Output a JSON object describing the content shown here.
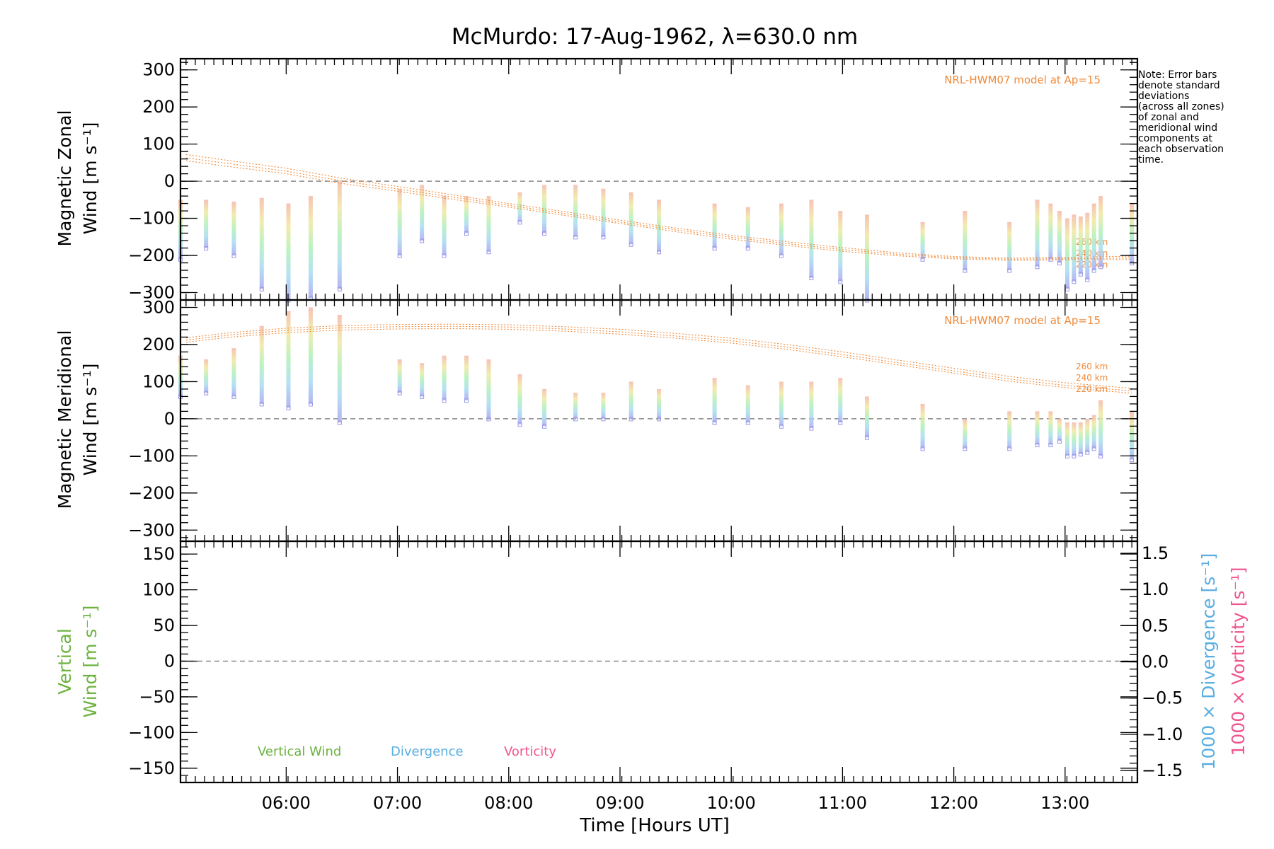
{
  "title": "McMurdo: 17-Aug-1962, λ=630.0 nm",
  "note": [
    "Note: Error bars",
    "denote standard",
    "deviations",
    "(across all zones)",
    "of zonal and",
    "meridional wind",
    "components at",
    "each observation",
    "time."
  ],
  "colors": {
    "model": "#f08a3a",
    "vertical": "#6cb33f",
    "divergence": "#5aaee0",
    "vorticity": "#f0558e",
    "zero_line": "#888888",
    "zone_gradient": [
      "#a8a8f0",
      "#a8dcf0",
      "#b0f0b8",
      "#f0e8a0",
      "#f5b8a8"
    ]
  },
  "chart_data": [
    {
      "id": "zonal",
      "type": "scatter",
      "ylabel": [
        "Magnetic Zonal",
        "Wind [m s⁻¹]"
      ],
      "ylim": [
        -320,
        330
      ],
      "yticks": [
        300,
        200,
        100,
        0,
        -100,
        -200,
        -300
      ],
      "model_label": "NRL-HWM07 model at Ap=15",
      "model_alts": [
        "260 km",
        "240 km",
        "220 km"
      ],
      "model_curves": [
        {
          "alt": "260 km",
          "t": [
            5.1,
            5.5,
            6.0,
            6.5,
            7.0,
            7.5,
            8.0,
            8.5,
            9.0,
            9.5,
            10.0,
            10.5,
            11.0,
            11.5,
            12.0,
            12.5,
            13.0,
            13.6
          ],
          "v": [
            72,
            55,
            35,
            8,
            -14,
            -37,
            -60,
            -82,
            -105,
            -126,
            -146,
            -163,
            -179,
            -193,
            -203,
            -207,
            -205,
            -202
          ]
        },
        {
          "alt": "240 km",
          "t": [
            5.1,
            5.5,
            6.0,
            6.5,
            7.0,
            7.5,
            8.0,
            8.5,
            9.0,
            9.5,
            10.0,
            10.5,
            11.0,
            11.5,
            12.0,
            12.5,
            13.0,
            13.6
          ],
          "v": [
            63,
            47,
            27,
            1,
            -21,
            -43,
            -65,
            -87,
            -110,
            -131,
            -151,
            -168,
            -184,
            -197,
            -206,
            -210,
            -209,
            -207
          ]
        },
        {
          "alt": "220 km",
          "t": [
            5.1,
            5.5,
            6.0,
            6.5,
            7.0,
            7.5,
            8.0,
            8.5,
            9.0,
            9.5,
            10.0,
            10.5,
            11.0,
            11.5,
            12.0,
            12.5,
            13.0,
            13.6
          ],
          "v": [
            55,
            39,
            20,
            -6,
            -27,
            -49,
            -70,
            -92,
            -114,
            -136,
            -156,
            -173,
            -189,
            -201,
            -209,
            -213,
            -212,
            -211
          ]
        }
      ],
      "observations": [
        {
          "t": 5.05,
          "lo": -210,
          "hi": -50
        },
        {
          "t": 5.28,
          "lo": -180,
          "hi": -50
        },
        {
          "t": 5.53,
          "lo": -200,
          "hi": -55
        },
        {
          "t": 5.78,
          "lo": -290,
          "hi": -45
        },
        {
          "t": 6.02,
          "lo": -320,
          "hi": -60
        },
        {
          "t": 6.22,
          "lo": -315,
          "hi": -40
        },
        {
          "t": 6.48,
          "lo": -290,
          "hi": 0
        },
        {
          "t": 7.02,
          "lo": -200,
          "hi": -20
        },
        {
          "t": 7.22,
          "lo": -160,
          "hi": -10
        },
        {
          "t": 7.42,
          "lo": -200,
          "hi": -40
        },
        {
          "t": 7.62,
          "lo": -140,
          "hi": -40
        },
        {
          "t": 7.82,
          "lo": -190,
          "hi": -40
        },
        {
          "t": 8.1,
          "lo": -110,
          "hi": -30
        },
        {
          "t": 8.32,
          "lo": -140,
          "hi": -10
        },
        {
          "t": 8.6,
          "lo": -150,
          "hi": -10
        },
        {
          "t": 8.85,
          "lo": -150,
          "hi": -20
        },
        {
          "t": 9.1,
          "lo": -170,
          "hi": -30
        },
        {
          "t": 9.35,
          "lo": -190,
          "hi": -50
        },
        {
          "t": 9.85,
          "lo": -180,
          "hi": -60
        },
        {
          "t": 10.15,
          "lo": -180,
          "hi": -70
        },
        {
          "t": 10.45,
          "lo": -200,
          "hi": -60
        },
        {
          "t": 10.72,
          "lo": -260,
          "hi": -50
        },
        {
          "t": 10.98,
          "lo": -270,
          "hi": -80
        },
        {
          "t": 11.22,
          "lo": -320,
          "hi": -90
        },
        {
          "t": 11.72,
          "lo": -210,
          "hi": -110
        },
        {
          "t": 12.1,
          "lo": -240,
          "hi": -80
        },
        {
          "t": 12.5,
          "lo": -240,
          "hi": -110
        },
        {
          "t": 12.75,
          "lo": -230,
          "hi": -50
        },
        {
          "t": 12.87,
          "lo": -210,
          "hi": -60
        },
        {
          "t": 12.95,
          "lo": -220,
          "hi": -80
        },
        {
          "t": 13.02,
          "lo": -290,
          "hi": -100
        },
        {
          "t": 13.08,
          "lo": -270,
          "hi": -90
        },
        {
          "t": 13.14,
          "lo": -250,
          "hi": -95
        },
        {
          "t": 13.2,
          "lo": -265,
          "hi": -85
        },
        {
          "t": 13.26,
          "lo": -240,
          "hi": -60
        },
        {
          "t": 13.32,
          "lo": -230,
          "hi": -40
        },
        {
          "t": 13.6,
          "lo": -220,
          "hi": -60
        }
      ]
    },
    {
      "id": "meridional",
      "type": "scatter",
      "ylabel": [
        "Magnetic Meridional",
        "Wind [m s⁻¹]"
      ],
      "ylim": [
        -330,
        320
      ],
      "yticks": [
        300,
        200,
        100,
        0,
        -100,
        -200,
        -300
      ],
      "model_label": "NRL-HWM07 model at Ap=15",
      "model_alts": [
        "260 km",
        "240 km",
        "220 km"
      ],
      "model_curves": [
        {
          "alt": "260 km",
          "t": [
            5.1,
            5.5,
            6.0,
            6.5,
            7.0,
            7.5,
            8.0,
            8.5,
            9.0,
            9.5,
            10.0,
            10.5,
            11.0,
            11.5,
            12.0,
            12.5,
            13.0,
            13.6
          ],
          "v": [
            218,
            232,
            244,
            251,
            254,
            255,
            253,
            248,
            241,
            230,
            217,
            200,
            180,
            158,
            136,
            114,
            97,
            82
          ]
        },
        {
          "alt": "240 km",
          "t": [
            5.1,
            5.5,
            6.0,
            6.5,
            7.0,
            7.5,
            8.0,
            8.5,
            9.0,
            9.5,
            10.0,
            10.5,
            11.0,
            11.5,
            12.0,
            12.5,
            13.0,
            13.6
          ],
          "v": [
            212,
            226,
            238,
            245,
            248,
            249,
            247,
            242,
            234,
            223,
            210,
            193,
            173,
            151,
            129,
            107,
            90,
            75
          ]
        },
        {
          "alt": "220 km",
          "t": [
            5.1,
            5.5,
            6.0,
            6.5,
            7.0,
            7.5,
            8.0,
            8.5,
            9.0,
            9.5,
            10.0,
            10.5,
            11.0,
            11.5,
            12.0,
            12.5,
            13.0,
            13.6
          ],
          "v": [
            206,
            220,
            232,
            239,
            242,
            243,
            241,
            236,
            228,
            217,
            204,
            187,
            167,
            145,
            123,
            101,
            84,
            69
          ]
        }
      ],
      "observations": [
        {
          "t": 5.05,
          "lo": 60,
          "hi": 170
        },
        {
          "t": 5.28,
          "lo": 70,
          "hi": 160
        },
        {
          "t": 5.53,
          "lo": 60,
          "hi": 190
        },
        {
          "t": 5.78,
          "lo": 40,
          "hi": 250
        },
        {
          "t": 6.02,
          "lo": 30,
          "hi": 290
        },
        {
          "t": 6.22,
          "lo": 40,
          "hi": 300
        },
        {
          "t": 6.48,
          "lo": -10,
          "hi": 280
        },
        {
          "t": 7.02,
          "lo": 70,
          "hi": 160
        },
        {
          "t": 7.22,
          "lo": 60,
          "hi": 150
        },
        {
          "t": 7.42,
          "lo": 50,
          "hi": 170
        },
        {
          "t": 7.62,
          "lo": 50,
          "hi": 170
        },
        {
          "t": 7.82,
          "lo": 0,
          "hi": 160
        },
        {
          "t": 8.1,
          "lo": -15,
          "hi": 120
        },
        {
          "t": 8.32,
          "lo": -20,
          "hi": 80
        },
        {
          "t": 8.6,
          "lo": 0,
          "hi": 70
        },
        {
          "t": 8.85,
          "lo": 0,
          "hi": 70
        },
        {
          "t": 9.1,
          "lo": 0,
          "hi": 100
        },
        {
          "t": 9.35,
          "lo": 0,
          "hi": 80
        },
        {
          "t": 9.85,
          "lo": -10,
          "hi": 110
        },
        {
          "t": 10.15,
          "lo": -10,
          "hi": 90
        },
        {
          "t": 10.45,
          "lo": -20,
          "hi": 100
        },
        {
          "t": 10.72,
          "lo": -25,
          "hi": 100
        },
        {
          "t": 10.98,
          "lo": -10,
          "hi": 110
        },
        {
          "t": 11.22,
          "lo": -50,
          "hi": 60
        },
        {
          "t": 11.72,
          "lo": -80,
          "hi": 40
        },
        {
          "t": 12.1,
          "lo": -80,
          "hi": 0
        },
        {
          "t": 12.5,
          "lo": -80,
          "hi": 20
        },
        {
          "t": 12.75,
          "lo": -70,
          "hi": 20
        },
        {
          "t": 12.87,
          "lo": -70,
          "hi": 20
        },
        {
          "t": 12.95,
          "lo": -60,
          "hi": 0
        },
        {
          "t": 13.02,
          "lo": -100,
          "hi": -10
        },
        {
          "t": 13.08,
          "lo": -100,
          "hi": -10
        },
        {
          "t": 13.14,
          "lo": -95,
          "hi": -10
        },
        {
          "t": 13.2,
          "lo": -90,
          "hi": 0
        },
        {
          "t": 13.26,
          "lo": -80,
          "hi": 10
        },
        {
          "t": 13.32,
          "lo": -100,
          "hi": 50
        },
        {
          "t": 13.6,
          "lo": -110,
          "hi": 20
        }
      ]
    },
    {
      "id": "vertical",
      "type": "line",
      "ylabel": [
        "Vertical",
        "Wind [m s⁻¹]"
      ],
      "ylim": [
        -170,
        168
      ],
      "yticks": [
        150,
        100,
        50,
        0,
        -50,
        -100,
        -150
      ],
      "y2label_divergence": "1000 × Divergence [s⁻¹]",
      "y2label_vorticity": "1000 × Vorticity [s⁻¹]",
      "y2lim": [
        -1.5,
        1.5
      ],
      "y2ticks": [
        "1.5",
        "1.0",
        "0.5",
        "0.0",
        "−0.5",
        "−1.0",
        "−1.5"
      ],
      "legend": [
        "Vertical Wind",
        "Divergence",
        "Vorticity"
      ],
      "series": []
    }
  ],
  "xaxis": {
    "label": "Time [Hours UT]",
    "xlim": [
      5.05,
      13.65
    ],
    "ticks": [
      6,
      7,
      8,
      9,
      10,
      11,
      12,
      13
    ],
    "ticklabels": [
      "06:00",
      "07:00",
      "08:00",
      "09:00",
      "10:00",
      "11:00",
      "12:00",
      "13:00"
    ]
  }
}
